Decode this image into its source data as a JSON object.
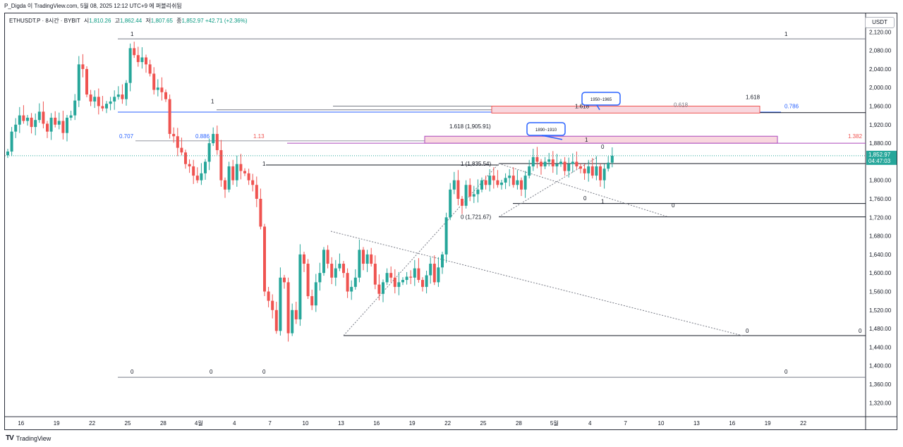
{
  "header": {
    "caption": "P_Digda 이 TradingView.com, 5월 08, 2025 12:12 UTC+9 에 퍼블리쉬됨"
  },
  "legend": {
    "symbol": "ETHUSDT.P · 8시간 · BYBIT",
    "o_label": "시",
    "o": "1,810.26",
    "h_label": "고",
    "h": "1,862.44",
    "l_label": "저",
    "l": "1,807.65",
    "c_label": "종",
    "c": "1,852.97",
    "change": "+42.71 (+2.36%)"
  },
  "unit_label": "USDT",
  "footer": {
    "logo": "TV",
    "brand": "TradingView"
  },
  "colors": {
    "up": "#26a69a",
    "down": "#ef5350",
    "fib": "#2962ff",
    "zone": "#f8d7de"
  },
  "chart_data": {
    "type": "candlestick",
    "symbol": "ETHUSDT.P",
    "interval": "8시간",
    "exchange": "BYBIT",
    "ylim": [
      1290,
      2160
    ],
    "y_ticks": [
      1320,
      1360,
      1400,
      1440,
      1480,
      1520,
      1560,
      1600,
      1640,
      1680,
      1720,
      1760,
      1800,
      1840,
      1880,
      1920,
      1960,
      2000,
      2040,
      2080,
      2120
    ],
    "x_ticks": [
      {
        "label": "16",
        "bar": 3
      },
      {
        "label": "19",
        "bar": 12
      },
      {
        "label": "22",
        "bar": 21
      },
      {
        "label": "25",
        "bar": 30
      },
      {
        "label": "28",
        "bar": 39
      },
      {
        "label": "4월",
        "bar": 48
      },
      {
        "label": "4",
        "bar": 57
      },
      {
        "label": "7",
        "bar": 66
      },
      {
        "label": "10",
        "bar": 75
      },
      {
        "label": "13",
        "bar": 84
      },
      {
        "label": "16",
        "bar": 93
      },
      {
        "label": "19",
        "bar": 102
      },
      {
        "label": "22",
        "bar": 111
      },
      {
        "label": "25",
        "bar": 120
      },
      {
        "label": "28",
        "bar": 129
      },
      {
        "label": "5월",
        "bar": 138
      },
      {
        "label": "4",
        "bar": 147
      },
      {
        "label": "7",
        "bar": 156
      },
      {
        "label": "10",
        "bar": 165
      },
      {
        "label": "13",
        "bar": 174
      },
      {
        "label": "16",
        "bar": 183
      },
      {
        "label": "19",
        "bar": 192
      },
      {
        "label": "22",
        "bar": 201
      }
    ],
    "last_price": "1,852.97",
    "countdown": "04:47:03",
    "closes": [
      1862,
      1905,
      1920,
      1940,
      1928,
      1935,
      1915,
      1930,
      1948,
      1922,
      1905,
      1935,
      1920,
      1928,
      1902,
      1935,
      1940,
      1972,
      2050,
      2040,
      1985,
      1970,
      1980,
      1960,
      1955,
      1965,
      1970,
      1980,
      1985,
      1975,
      2010,
      2085,
      2070,
      2055,
      2065,
      2050,
      2030,
      1995,
      2000,
      1990,
      1975,
      1900,
      1895,
      1870,
      1860,
      1835,
      1830,
      1810,
      1800,
      1815,
      1840,
      1880,
      1900,
      1865,
      1800,
      1780,
      1830,
      1800,
      1835,
      1820,
      1815,
      1800,
      1790,
      1760,
      1700,
      1560,
      1540,
      1520,
      1475,
      1590,
      1580,
      1470,
      1520,
      1500,
      1640,
      1620,
      1550,
      1530,
      1580,
      1600,
      1650,
      1620,
      1590,
      1610,
      1620,
      1600,
      1560,
      1570,
      1590,
      1650,
      1620,
      1640,
      1620,
      1575,
      1555,
      1580,
      1600,
      1590,
      1570,
      1580,
      1585,
      1592,
      1590,
      1610,
      1585,
      1570,
      1595,
      1620,
      1580,
      1612,
      1640,
      1720,
      1780,
      1800,
      1760,
      1745,
      1790,
      1765,
      1770,
      1780,
      1800,
      1790,
      1810,
      1800,
      1790,
      1795,
      1805,
      1810,
      1790,
      1800,
      1780,
      1810,
      1830,
      1850,
      1840,
      1830,
      1840,
      1845,
      1830,
      1835,
      1840,
      1820,
      1835,
      1840,
      1830,
      1825,
      1815,
      1830,
      1810,
      1830,
      1800,
      1825,
      1838,
      1852.97
    ],
    "annotations": {
      "fib_left_levels": [
        "1",
        "0.707",
        "0.886",
        "1.13",
        "1",
        "0",
        "0",
        "0"
      ],
      "fib_top_levels": [
        "1.618",
        "0.618",
        "1.618",
        "0.786",
        "1.382"
      ],
      "upper_fib_label": "1.618 (1,905.91)",
      "mid_fib_one": "1 (1,835.54)",
      "mid_fib_zero": "0 (1,721.67)",
      "callout_upper": "1950~1965",
      "callout_lower": "1890~1910",
      "right_zero_labels": [
        "0",
        "0",
        "0"
      ],
      "right_one_label": "1",
      "pattern_labels": [
        "1",
        "0",
        "0",
        "1",
        "0"
      ]
    }
  }
}
